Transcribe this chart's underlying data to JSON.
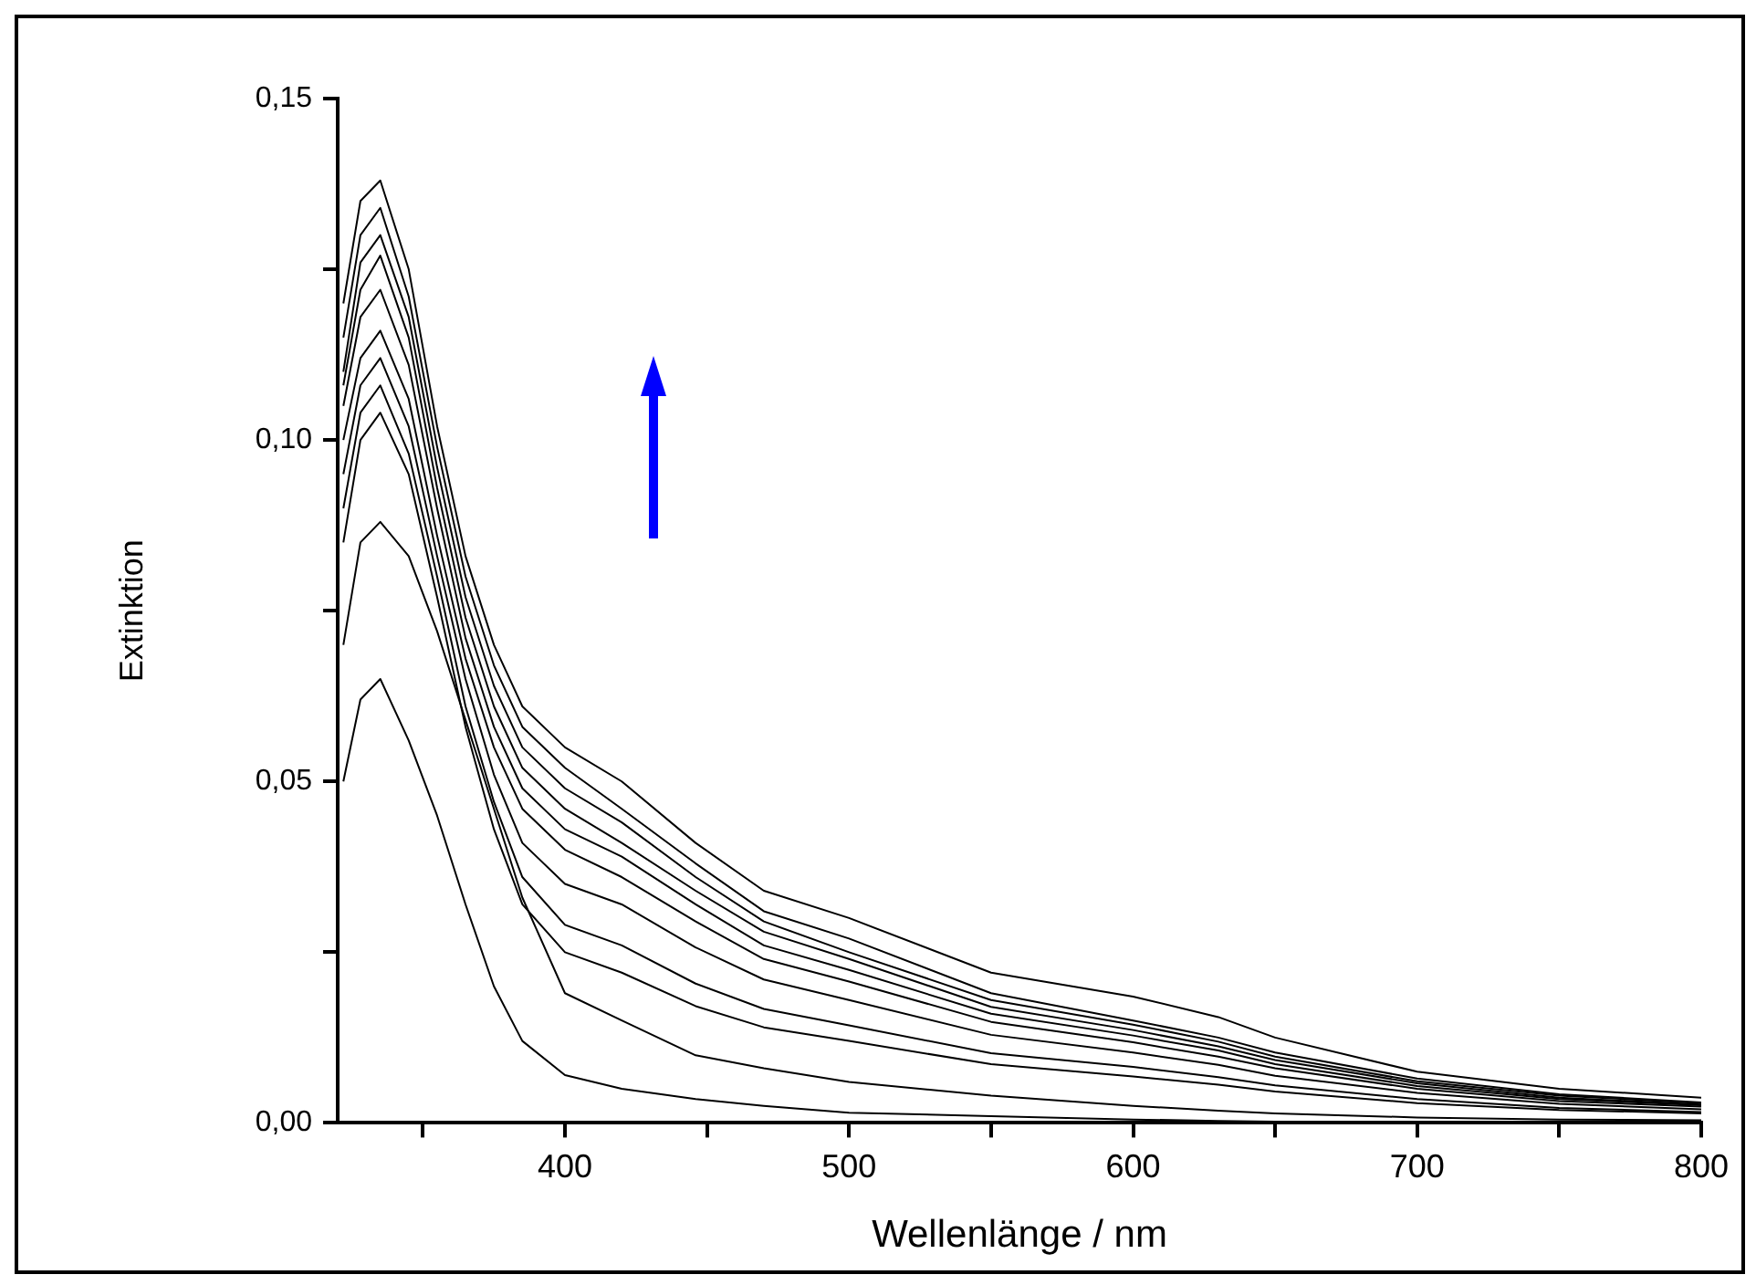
{
  "chart_data": {
    "type": "line",
    "xlabel": "Wellenlänge / nm",
    "ylabel": "Extinktion",
    "x": [
      322,
      328,
      335,
      345,
      355,
      365,
      375,
      385,
      400,
      420,
      446,
      470,
      500,
      550,
      600,
      630,
      650,
      700,
      750,
      800
    ],
    "xlim": [
      320,
      800
    ],
    "xticks": [
      {
        "value": 350,
        "label": null
      },
      400,
      {
        "value": 450,
        "label": null
      },
      500,
      {
        "value": 550,
        "label": null
      },
      600,
      {
        "value": 650,
        "label": null
      },
      700,
      {
        "value": 750,
        "label": null
      },
      800
    ],
    "ylim": [
      0,
      0.15
    ],
    "yticks": [
      {
        "value": 0,
        "label": "0,00"
      },
      {
        "value": 0.025,
        "label": null
      },
      {
        "value": 0.05,
        "label": "0,05"
      },
      {
        "value": 0.075,
        "label": null
      },
      {
        "value": 0.1,
        "label": "0,10"
      },
      {
        "value": 0.125,
        "label": null
      },
      {
        "value": 0.15,
        "label": "0,15"
      }
    ],
    "grid": false,
    "legend": false,
    "series": [
      {
        "color": "#000000",
        "values": [
          0.12,
          0.135,
          0.138,
          0.125,
          0.102,
          0.083,
          0.07,
          0.061,
          0.055,
          0.05,
          0.041,
          0.034,
          0.03,
          0.022,
          0.0185,
          0.0155,
          0.0125,
          0.0075,
          0.005,
          0.0037
        ]
      },
      {
        "color": "#000000",
        "values": [
          0.115,
          0.13,
          0.134,
          0.121,
          0.099,
          0.08,
          0.067,
          0.058,
          0.052,
          0.046,
          0.038,
          0.031,
          0.027,
          0.019,
          0.015,
          0.0125,
          0.0103,
          0.0065,
          0.0042,
          0.003
        ]
      },
      {
        "color": "#000000",
        "values": [
          0.11,
          0.126,
          0.13,
          0.118,
          0.096,
          0.077,
          0.064,
          0.055,
          0.049,
          0.044,
          0.036,
          0.0295,
          0.025,
          0.018,
          0.0144,
          0.0119,
          0.0097,
          0.0061,
          0.004,
          0.0029
        ]
      },
      {
        "color": "#000000",
        "values": [
          0.108,
          0.122,
          0.127,
          0.115,
          0.093,
          0.074,
          0.061,
          0.052,
          0.046,
          0.041,
          0.034,
          0.028,
          0.024,
          0.017,
          0.0136,
          0.0112,
          0.0092,
          0.0058,
          0.0037,
          0.0027
        ]
      },
      {
        "color": "#000000",
        "values": [
          0.105,
          0.118,
          0.122,
          0.111,
          0.09,
          0.071,
          0.058,
          0.049,
          0.043,
          0.039,
          0.032,
          0.026,
          0.0224,
          0.016,
          0.0128,
          0.0106,
          0.0086,
          0.0054,
          0.0035,
          0.0026
        ]
      },
      {
        "color": "#000000",
        "values": [
          0.1,
          0.112,
          0.116,
          0.106,
          0.086,
          0.068,
          0.055,
          0.046,
          0.04,
          0.036,
          0.0295,
          0.024,
          0.0207,
          0.0148,
          0.0118,
          0.0097,
          0.008,
          0.005,
          0.0032,
          0.0024
        ]
      },
      {
        "color": "#000000",
        "values": [
          0.095,
          0.108,
          0.112,
          0.102,
          0.083,
          0.065,
          0.051,
          0.041,
          0.035,
          0.032,
          0.0257,
          0.021,
          0.018,
          0.0129,
          0.0103,
          0.0085,
          0.0069,
          0.0044,
          0.0028,
          0.002
        ]
      },
      {
        "color": "#000000",
        "values": [
          0.09,
          0.104,
          0.108,
          0.098,
          0.08,
          0.061,
          0.047,
          0.036,
          0.029,
          0.026,
          0.0204,
          0.0167,
          0.0143,
          0.0102,
          0.0082,
          0.0067,
          0.0055,
          0.0035,
          0.0022,
          0.0016
        ]
      },
      {
        "color": "#000000",
        "values": [
          0.085,
          0.1,
          0.104,
          0.095,
          0.077,
          0.058,
          0.043,
          0.032,
          0.025,
          0.022,
          0.0171,
          0.014,
          0.012,
          0.0086,
          0.0068,
          0.0056,
          0.0046,
          0.0029,
          0.0019,
          0.0014
        ]
      },
      {
        "color": "#000000",
        "values": [
          0.07,
          0.085,
          0.088,
          0.083,
          0.072,
          0.059,
          0.046,
          0.033,
          0.019,
          0.015,
          0.0099,
          0.008,
          0.006,
          0.004,
          0.0025,
          0.0018,
          0.0014,
          0.0008,
          0.0005,
          0.0004
        ]
      },
      {
        "color": "#000000",
        "values": [
          0.05,
          0.062,
          0.065,
          0.056,
          0.045,
          0.032,
          0.02,
          0.012,
          0.007,
          0.005,
          0.0035,
          0.0025,
          0.0015,
          0.001,
          0.0005,
          0.0003,
          0.0002,
          0.0001,
          0,
          0
        ]
      }
    ]
  }
}
